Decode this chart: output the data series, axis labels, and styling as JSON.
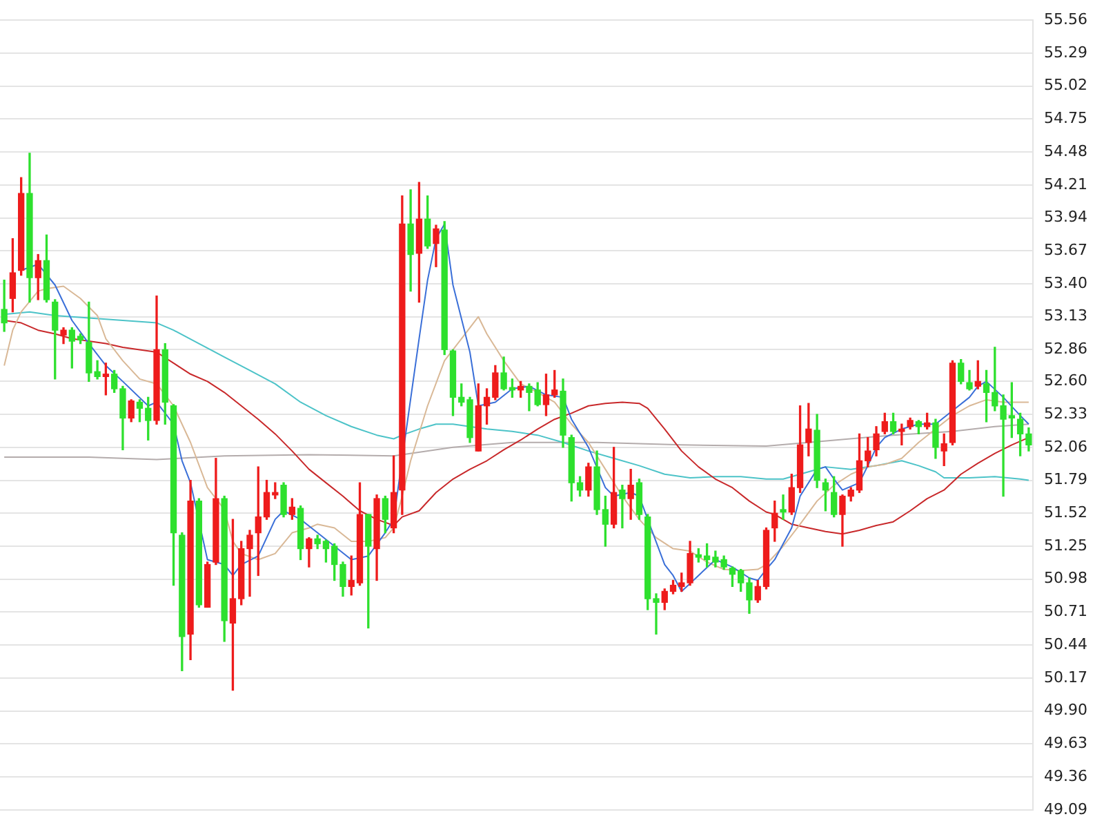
{
  "chart_data": {
    "type": "candlestick",
    "categories": [
      null,
      null,
      null,
      null,
      null,
      null,
      null,
      null,
      null,
      null,
      null,
      null,
      null,
      null,
      null,
      null,
      null,
      null,
      null,
      null,
      null,
      null,
      null,
      null,
      null,
      null,
      null,
      null,
      null,
      null,
      null,
      null,
      null,
      null,
      null,
      null,
      null,
      null,
      null,
      null,
      null,
      null,
      null,
      null,
      null,
      null,
      null,
      null,
      null,
      null,
      null,
      null,
      null,
      null,
      null,
      null,
      null,
      null,
      null,
      null,
      null,
      null,
      null,
      null,
      null,
      null,
      null,
      null,
      null,
      null,
      null,
      null,
      null,
      null,
      null,
      null,
      null,
      null,
      null,
      null,
      null,
      null,
      null,
      null,
      null,
      null,
      null,
      null,
      null,
      null,
      null,
      null,
      null,
      null,
      null,
      null,
      null,
      null,
      null,
      null,
      null,
      null,
      null,
      null,
      null,
      null,
      null,
      null,
      null,
      null,
      null,
      null,
      null,
      null,
      null,
      null,
      null,
      null,
      null,
      null,
      null,
      null
    ],
    "ohlc": [
      [
        53.19,
        53.43,
        53.01,
        53.08
      ],
      [
        53.28,
        53.77,
        53.17,
        53.49
      ],
      [
        53.51,
        54.27,
        53.47,
        54.14
      ],
      [
        54.14,
        54.47,
        53.25,
        53.45
      ],
      [
        53.45,
        53.64,
        53.27,
        53.59
      ],
      [
        53.59,
        53.8,
        53.25,
        53.27
      ],
      [
        53.25,
        53.27,
        52.62,
        53.02
      ],
      [
        52.98,
        53.04,
        52.91,
        53.02
      ],
      [
        53.02,
        53.04,
        52.71,
        52.93
      ],
      [
        52.97,
        52.99,
        52.91,
        52.94
      ],
      [
        52.92,
        53.25,
        52.6,
        52.67
      ],
      [
        52.68,
        52.77,
        52.62,
        52.64
      ],
      [
        52.64,
        52.75,
        52.49,
        52.66
      ],
      [
        52.66,
        52.69,
        52.51,
        52.54
      ],
      [
        52.54,
        52.56,
        52.04,
        52.3
      ],
      [
        52.3,
        52.45,
        52.27,
        52.44
      ],
      [
        52.43,
        52.45,
        52.27,
        52.38
      ],
      [
        52.38,
        52.47,
        52.12,
        52.28
      ],
      [
        52.28,
        53.3,
        52.25,
        52.86
      ],
      [
        52.86,
        52.91,
        52.25,
        52.43
      ],
      [
        52.4,
        52.41,
        50.93,
        51.36
      ],
      [
        51.34,
        51.36,
        50.23,
        50.51
      ],
      [
        50.53,
        51.79,
        50.32,
        51.62
      ],
      [
        51.62,
        51.64,
        50.75,
        50.77
      ],
      [
        50.75,
        51.12,
        50.75,
        51.1
      ],
      [
        51.12,
        51.97,
        51.1,
        51.64
      ],
      [
        51.64,
        51.66,
        50.47,
        50.64
      ],
      [
        50.62,
        51.47,
        50.07,
        50.82
      ],
      [
        50.82,
        51.29,
        50.77,
        51.23
      ],
      [
        51.23,
        51.38,
        50.84,
        51.34
      ],
      [
        51.36,
        51.9,
        51.01,
        51.49
      ],
      [
        51.49,
        51.79,
        51.47,
        51.69
      ],
      [
        51.67,
        51.77,
        51.64,
        51.69
      ],
      [
        51.75,
        51.77,
        51.49,
        51.51
      ],
      [
        51.51,
        51.64,
        51.47,
        51.57
      ],
      [
        51.56,
        51.58,
        51.14,
        51.23
      ],
      [
        51.23,
        51.32,
        51.08,
        51.31
      ],
      [
        51.31,
        51.34,
        51.23,
        51.27
      ],
      [
        51.29,
        51.3,
        51.12,
        51.23
      ],
      [
        51.25,
        51.27,
        50.97,
        51.1
      ],
      [
        51.1,
        51.12,
        50.84,
        50.92
      ],
      [
        50.92,
        51.17,
        50.85,
        50.97
      ],
      [
        50.95,
        51.77,
        50.93,
        51.51
      ],
      [
        51.51,
        51.51,
        50.58,
        51.25
      ],
      [
        51.23,
        51.67,
        50.97,
        51.64
      ],
      [
        51.64,
        51.66,
        51.36,
        51.47
      ],
      [
        51.4,
        51.99,
        51.36,
        51.69
      ],
      [
        51.71,
        54.12,
        51.51,
        53.89
      ],
      [
        53.89,
        54.17,
        53.34,
        53.64
      ],
      [
        53.65,
        54.23,
        53.25,
        53.93
      ],
      [
        53.93,
        54.12,
        53.69,
        53.71
      ],
      [
        53.73,
        53.88,
        53.54,
        53.85
      ],
      [
        53.84,
        53.91,
        52.82,
        52.86
      ],
      [
        52.85,
        52.86,
        52.32,
        52.47
      ],
      [
        52.47,
        52.58,
        52.4,
        52.43
      ],
      [
        52.45,
        52.47,
        52.1,
        52.14
      ],
      [
        52.03,
        52.58,
        52.03,
        52.4
      ],
      [
        52.4,
        52.54,
        52.25,
        52.47
      ],
      [
        52.47,
        52.73,
        52.45,
        52.67
      ],
      [
        52.67,
        52.8,
        52.53,
        52.54
      ],
      [
        52.55,
        52.62,
        52.47,
        52.53
      ],
      [
        52.53,
        52.6,
        52.47,
        52.56
      ],
      [
        52.56,
        52.58,
        52.36,
        52.51
      ],
      [
        52.53,
        52.59,
        52.4,
        52.41
      ],
      [
        52.41,
        52.66,
        52.32,
        52.49
      ],
      [
        52.49,
        52.69,
        52.47,
        52.53
      ],
      [
        52.52,
        52.62,
        52.06,
        52.16
      ],
      [
        52.14,
        52.16,
        51.62,
        51.77
      ],
      [
        51.77,
        51.82,
        51.66,
        51.71
      ],
      [
        51.71,
        51.93,
        51.66,
        51.9
      ],
      [
        51.9,
        52.03,
        51.51,
        51.55
      ],
      [
        51.55,
        51.66,
        51.25,
        51.43
      ],
      [
        51.43,
        52.06,
        51.4,
        51.69
      ],
      [
        51.71,
        51.75,
        51.4,
        51.64
      ],
      [
        51.64,
        51.88,
        51.47,
        51.75
      ],
      [
        51.77,
        51.8,
        51.47,
        51.51
      ],
      [
        51.49,
        51.51,
        50.73,
        50.82
      ],
      [
        50.82,
        50.86,
        50.53,
        50.79
      ],
      [
        50.79,
        50.9,
        50.73,
        50.88
      ],
      [
        50.88,
        50.97,
        50.86,
        50.93
      ],
      [
        50.92,
        51.03,
        50.88,
        50.95
      ],
      [
        50.95,
        51.29,
        50.93,
        51.19
      ],
      [
        51.18,
        51.23,
        51.12,
        51.16
      ],
      [
        51.17,
        51.27,
        51.08,
        51.14
      ],
      [
        51.16,
        51.21,
        51.08,
        51.12
      ],
      [
        51.14,
        51.17,
        51.06,
        51.08
      ],
      [
        51.07,
        51.08,
        50.92,
        51.02
      ],
      [
        51.05,
        51.06,
        50.88,
        50.95
      ],
      [
        50.95,
        50.99,
        50.7,
        50.81
      ],
      [
        50.81,
        50.97,
        50.79,
        50.92
      ],
      [
        50.92,
        51.4,
        50.9,
        51.38
      ],
      [
        51.4,
        51.62,
        51.29,
        51.52
      ],
      [
        51.55,
        51.67,
        51.47,
        51.53
      ],
      [
        51.53,
        51.84,
        51.51,
        51.73
      ],
      [
        51.73,
        52.4,
        51.69,
        52.08
      ],
      [
        52.1,
        52.42,
        51.99,
        52.21
      ],
      [
        52.2,
        52.33,
        51.73,
        51.79
      ],
      [
        51.77,
        51.8,
        51.54,
        51.71
      ],
      [
        51.69,
        51.82,
        51.49,
        51.51
      ],
      [
        51.51,
        51.67,
        51.25,
        51.66
      ],
      [
        51.66,
        51.73,
        51.62,
        51.71
      ],
      [
        51.71,
        52.17,
        51.69,
        51.95
      ],
      [
        51.95,
        52.14,
        51.9,
        52.03
      ],
      [
        52.04,
        52.23,
        51.99,
        52.17
      ],
      [
        52.19,
        52.34,
        52.17,
        52.27
      ],
      [
        52.27,
        52.34,
        52.17,
        52.19
      ],
      [
        52.19,
        52.25,
        52.08,
        52.21
      ],
      [
        52.23,
        52.3,
        52.21,
        52.28
      ],
      [
        52.27,
        52.28,
        52.17,
        52.23
      ],
      [
        52.23,
        52.34,
        52.21,
        52.26
      ],
      [
        52.26,
        52.29,
        51.97,
        52.06
      ],
      [
        52.03,
        52.17,
        51.91,
        52.09
      ],
      [
        52.1,
        52.77,
        52.08,
        52.75
      ],
      [
        52.75,
        52.78,
        52.58,
        52.6
      ],
      [
        52.59,
        52.69,
        52.53,
        52.54
      ],
      [
        52.56,
        52.77,
        52.54,
        52.6
      ],
      [
        52.58,
        52.69,
        52.27,
        52.51
      ],
      [
        52.51,
        52.88,
        52.36,
        52.4
      ],
      [
        52.4,
        52.49,
        51.66,
        52.29
      ],
      [
        52.32,
        52.59,
        52.14,
        52.3
      ],
      [
        52.29,
        52.34,
        51.99,
        52.17
      ],
      [
        52.17,
        52.22,
        52.03,
        52.08
      ]
    ],
    "colors": [
      "#2ee02e",
      "#ee1c1c",
      "#ee1c1c",
      "#2ee02e",
      "#ee1c1c",
      "#2ee02e",
      "#2ee02e",
      "#ee1c1c",
      "#2ee02e",
      "#2ee02e",
      "#2ee02e",
      "#2ee02e",
      "#ee1c1c",
      "#2ee02e",
      "#2ee02e",
      "#ee1c1c",
      "#2ee02e",
      "#2ee02e",
      "#ee1c1c",
      "#2ee02e",
      "#2ee02e",
      "#2ee02e",
      "#ee1c1c",
      "#2ee02e",
      "#ee1c1c",
      "#ee1c1c",
      "#2ee02e",
      "#ee1c1c",
      "#ee1c1c",
      "#ee1c1c",
      "#ee1c1c",
      "#ee1c1c",
      "#ee1c1c",
      "#2ee02e",
      "#ee1c1c",
      "#2ee02e",
      "#ee1c1c",
      "#2ee02e",
      "#2ee02e",
      "#2ee02e",
      "#2ee02e",
      "#ee1c1c",
      "#ee1c1c",
      "#2ee02e",
      "#ee1c1c",
      "#2ee02e",
      "#ee1c1c",
      "#ee1c1c",
      "#2ee02e",
      "#ee1c1c",
      "#2ee02e",
      "#ee1c1c",
      "#2ee02e",
      "#2ee02e",
      "#2ee02e",
      "#2ee02e",
      "#ee1c1c",
      "#ee1c1c",
      "#ee1c1c",
      "#2ee02e",
      "#2ee02e",
      "#ee1c1c",
      "#2ee02e",
      "#2ee02e",
      "#ee1c1c",
      "#ee1c1c",
      "#2ee02e",
      "#2ee02e",
      "#2ee02e",
      "#ee1c1c",
      "#2ee02e",
      "#2ee02e",
      "#ee1c1c",
      "#2ee02e",
      "#ee1c1c",
      "#2ee02e",
      "#2ee02e",
      "#2ee02e",
      "#ee1c1c",
      "#ee1c1c",
      "#ee1c1c",
      "#ee1c1c",
      "#2ee02e",
      "#2ee02e",
      "#2ee02e",
      "#2ee02e",
      "#2ee02e",
      "#2ee02e",
      "#2ee02e",
      "#ee1c1c",
      "#ee1c1c",
      "#ee1c1c",
      "#2ee02e",
      "#ee1c1c",
      "#ee1c1c",
      "#ee1c1c",
      "#2ee02e",
      "#2ee02e",
      "#2ee02e",
      "#ee1c1c",
      "#ee1c1c",
      "#ee1c1c",
      "#ee1c1c",
      "#ee1c1c",
      "#ee1c1c",
      "#2ee02e",
      "#ee1c1c",
      "#ee1c1c",
      "#2ee02e",
      "#ee1c1c",
      "#2ee02e",
      "#ee1c1c",
      "#ee1c1c",
      "#2ee02e",
      "#2ee02e",
      "#ee1c1c",
      "#2ee02e",
      "#2ee02e",
      "#2ee02e",
      "#2ee02e",
      "#2ee02e",
      "#2ee02e"
    ],
    "series": [
      {
        "type": "line",
        "color": "#3a6fd8",
        "values": [
          null,
          null,
          53.51,
          null,
          53.56,
          null,
          53.39,
          null,
          53.1,
          null,
          52.91,
          null,
          52.73,
          null,
          52.6,
          null,
          null,
          52.4,
          52.43,
          null,
          52.25,
          51.95,
          51.77,
          null,
          51.14,
          null,
          51.1,
          51.01,
          51.1,
          null,
          51.17,
          null,
          51.47,
          51.54,
          null,
          51.47,
          null,
          51.36,
          null,
          51.25,
          null,
          51.14,
          null,
          51.17,
          null,
          51.36,
          51.47,
          null,
          null,
          52.95,
          53.43,
          53.77,
          53.89,
          53.39,
          null,
          52.84,
          52.4,
          null,
          52.43,
          null,
          52.54,
          null,
          52.56,
          null,
          52.49,
          null,
          52.47,
          52.29,
          null,
          52.06,
          null,
          51.73,
          51.66,
          null,
          51.69,
          51.66,
          51.47,
          null,
          51.1,
          51.01,
          50.88,
          null,
          51.01,
          null,
          51.14,
          null,
          51.08,
          null,
          50.99,
          50.97,
          51.06,
          51.14,
          null,
          51.4,
          51.66,
          null,
          51.88,
          51.9,
          51.8,
          51.71,
          null,
          51.77,
          51.91,
          52.06,
          52.14,
          null,
          52.21,
          null,
          52.25,
          null,
          52.25,
          null,
          52.36,
          null,
          52.47,
          52.56,
          52.6,
          null,
          52.47,
          null,
          52.32,
          52.25
        ]
      },
      {
        "type": "line",
        "color": "#d9b896",
        "values": [
          52.73,
          53.02,
          53.17,
          null,
          53.34,
          53.36,
          null,
          53.38,
          null,
          53.28,
          null,
          53.14,
          52.95,
          null,
          52.77,
          null,
          52.62,
          null,
          52.58,
          null,
          52.4,
          null,
          52.1,
          null,
          51.73,
          null,
          51.55,
          51.29,
          51.19,
          null,
          51.14,
          null,
          51.19,
          null,
          51.36,
          null,
          51.4,
          51.43,
          null,
          51.4,
          null,
          51.29,
          null,
          51.29,
          null,
          51.32,
          51.4,
          51.66,
          51.95,
          null,
          52.4,
          null,
          52.77,
          null,
          52.95,
          null,
          53.13,
          52.99,
          null,
          52.77,
          null,
          52.58,
          null,
          52.51,
          null,
          52.43,
          null,
          52.25,
          null,
          52.1,
          null,
          51.88,
          null,
          51.66,
          null,
          51.47,
          null,
          51.32,
          null,
          51.23,
          null,
          51.21,
          null,
          51.12,
          null,
          51.06,
          null,
          51.05,
          null,
          51.06,
          51.1,
          null,
          51.25,
          null,
          51.43,
          null,
          51.62,
          null,
          51.75,
          null,
          51.84,
          null,
          51.9,
          null,
          51.92,
          null,
          51.97,
          null,
          52.1,
          null,
          52.21,
          null,
          52.32,
          null,
          52.4,
          null,
          52.45,
          null,
          52.43,
          null,
          null,
          52.43
        ]
      },
      {
        "type": "line",
        "color": "#c8282a",
        "values": [
          53.1,
          null,
          53.08,
          null,
          53.02,
          null,
          52.99,
          null,
          52.95,
          null,
          52.93,
          null,
          52.91,
          null,
          52.88,
          null,
          52.86,
          null,
          52.84,
          null,
          52.75,
          null,
          52.66,
          null,
          52.6,
          null,
          52.51,
          null,
          52.4,
          null,
          52.29,
          null,
          52.17,
          null,
          52.03,
          null,
          51.88,
          null,
          51.77,
          null,
          51.66,
          null,
          51.54,
          null,
          51.47,
          null,
          51.42,
          51.49,
          null,
          51.54,
          null,
          51.69,
          null,
          51.8,
          null,
          51.88,
          null,
          51.95,
          null,
          52.04,
          null,
          52.12,
          null,
          52.21,
          null,
          52.29,
          null,
          52.34,
          null,
          52.4,
          null,
          52.42,
          null,
          52.43,
          null,
          52.42,
          52.38,
          null,
          52.21,
          null,
          52.03,
          null,
          51.9,
          null,
          51.8,
          null,
          51.73,
          null,
          51.62,
          null,
          51.53,
          51.51,
          null,
          51.43,
          null,
          51.4,
          null,
          51.37,
          null,
          51.35,
          null,
          51.38,
          null,
          51.42,
          null,
          51.45,
          null,
          51.54,
          null,
          51.64,
          null,
          51.71,
          null,
          51.84,
          null,
          51.93,
          null,
          52.01,
          null,
          52.08,
          null,
          52.14
        ]
      },
      {
        "type": "line",
        "color": "#4cc3c8",
        "values": [
          53.15,
          null,
          null,
          53.17,
          null,
          null,
          53.14,
          null,
          null,
          null,
          53.12,
          null,
          null,
          null,
          53.1,
          null,
          null,
          null,
          53.08,
          null,
          53.02,
          null,
          null,
          52.91,
          null,
          null,
          52.8,
          null,
          null,
          52.69,
          null,
          null,
          52.58,
          null,
          null,
          52.43,
          null,
          null,
          52.32,
          null,
          null,
          52.23,
          null,
          null,
          52.16,
          null,
          52.13,
          52.16,
          null,
          52.21,
          null,
          52.25,
          null,
          52.25,
          null,
          52.23,
          null,
          52.21,
          null,
          null,
          52.19,
          null,
          null,
          52.16,
          null,
          null,
          52.1,
          null,
          null,
          52.03,
          null,
          null,
          51.97,
          null,
          null,
          51.91,
          null,
          null,
          51.84,
          null,
          null,
          51.81,
          null,
          null,
          51.82,
          null,
          null,
          51.82,
          null,
          null,
          51.8,
          null,
          51.8,
          null,
          null,
          51.86,
          null,
          51.9,
          null,
          null,
          51.88,
          null,
          null,
          51.91,
          null,
          null,
          51.95,
          null,
          51.91,
          null,
          51.86,
          51.81,
          null,
          null,
          51.81,
          null,
          null,
          51.82,
          null,
          null,
          51.8,
          51.79
        ]
      },
      {
        "type": "line",
        "color": "#b4acac",
        "values": [
          51.98,
          null,
          null,
          null,
          null,
          null,
          null,
          null,
          null,
          null,
          51.98,
          null,
          null,
          null,
          null,
          null,
          null,
          null,
          51.96,
          null,
          null,
          null,
          null,
          null,
          null,
          null,
          51.99,
          null,
          null,
          null,
          null,
          null,
          null,
          null,
          null,
          null,
          52.0,
          null,
          null,
          null,
          null,
          null,
          null,
          null,
          null,
          null,
          51.99,
          null,
          null,
          null,
          null,
          null,
          null,
          52.06,
          null,
          null,
          null,
          null,
          null,
          null,
          52.1,
          null,
          null,
          null,
          null,
          null,
          null,
          null,
          null,
          null,
          52.1,
          null,
          null,
          null,
          null,
          null,
          null,
          null,
          null,
          null,
          52.08,
          null,
          null,
          null,
          null,
          null,
          null,
          null,
          null,
          null,
          52.07,
          null,
          null,
          null,
          null,
          52.1,
          null,
          null,
          null,
          null,
          null,
          null,
          null,
          null,
          null,
          52.16,
          null,
          null,
          null,
          null,
          null,
          null,
          52.19,
          null,
          null,
          null,
          null,
          52.23,
          null,
          null,
          null,
          52.25
        ]
      }
    ],
    "ylim": [
      49.09,
      55.56
    ],
    "yticks": [
      55.56,
      55.29,
      55.02,
      54.75,
      54.48,
      54.21,
      53.94,
      53.67,
      {
        "value": 53.4,
        "label": "53.40"
      },
      53.13,
      52.86,
      {
        "value": 52.6,
        "label": "52.60"
      },
      52.33,
      52.06,
      51.79,
      51.52,
      51.25,
      50.98,
      50.71,
      50.44,
      50.17,
      {
        "value": 49.9,
        "label": "49.90"
      },
      49.63,
      49.36,
      49.09
    ],
    "grid": "y",
    "legend": false,
    "tick_labels": "y",
    "marker": "none",
    "line_style": "solid"
  }
}
